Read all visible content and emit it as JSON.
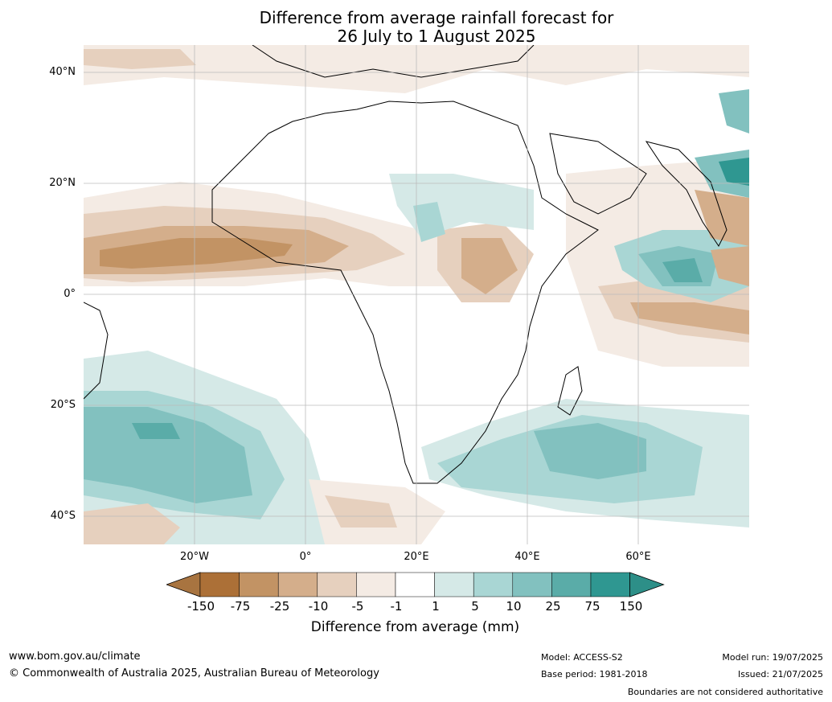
{
  "title": {
    "line1": "Difference from average rainfall forecast for",
    "line2": "26 July to 1 August 2025"
  },
  "axes": {
    "lat_labels": [
      "40°N",
      "20°N",
      "0°",
      "20°S",
      "40°S"
    ],
    "lon_labels": [
      "20°W",
      "0°",
      "20°E",
      "40°E",
      "60°E"
    ],
    "lon_range": [
      -40,
      80
    ],
    "lat_range": [
      -45,
      45
    ],
    "grid": true
  },
  "colorbar": {
    "title": "Difference from average (mm)",
    "ticks": [
      "-150",
      "-75",
      "-25",
      "-10",
      "-5",
      "-1",
      "1",
      "5",
      "10",
      "25",
      "75",
      "150"
    ],
    "colors": [
      "#a87440",
      "#ac7037",
      "#c29364",
      "#d4ae8b",
      "#e6d0be",
      "#f4ebe4",
      "#ffffff",
      "#d5e9e7",
      "#a9d6d4",
      "#82c1bf",
      "#5aaca8",
      "#2f9791",
      "#2d8f88"
    ],
    "extend": "both"
  },
  "footer": {
    "website": "www.bom.gov.au/climate",
    "copyright": "© Commonwealth of Australia 2025, Australian Bureau of Meteorology",
    "model": "Model: ACCESS-S2",
    "base_period": "Base period: 1981-2018",
    "model_run": "Model run: 19/07/2025",
    "issued": "Issued: 21/07/2025",
    "boundaries_note": "Boundaries are not considered authoritative"
  }
}
